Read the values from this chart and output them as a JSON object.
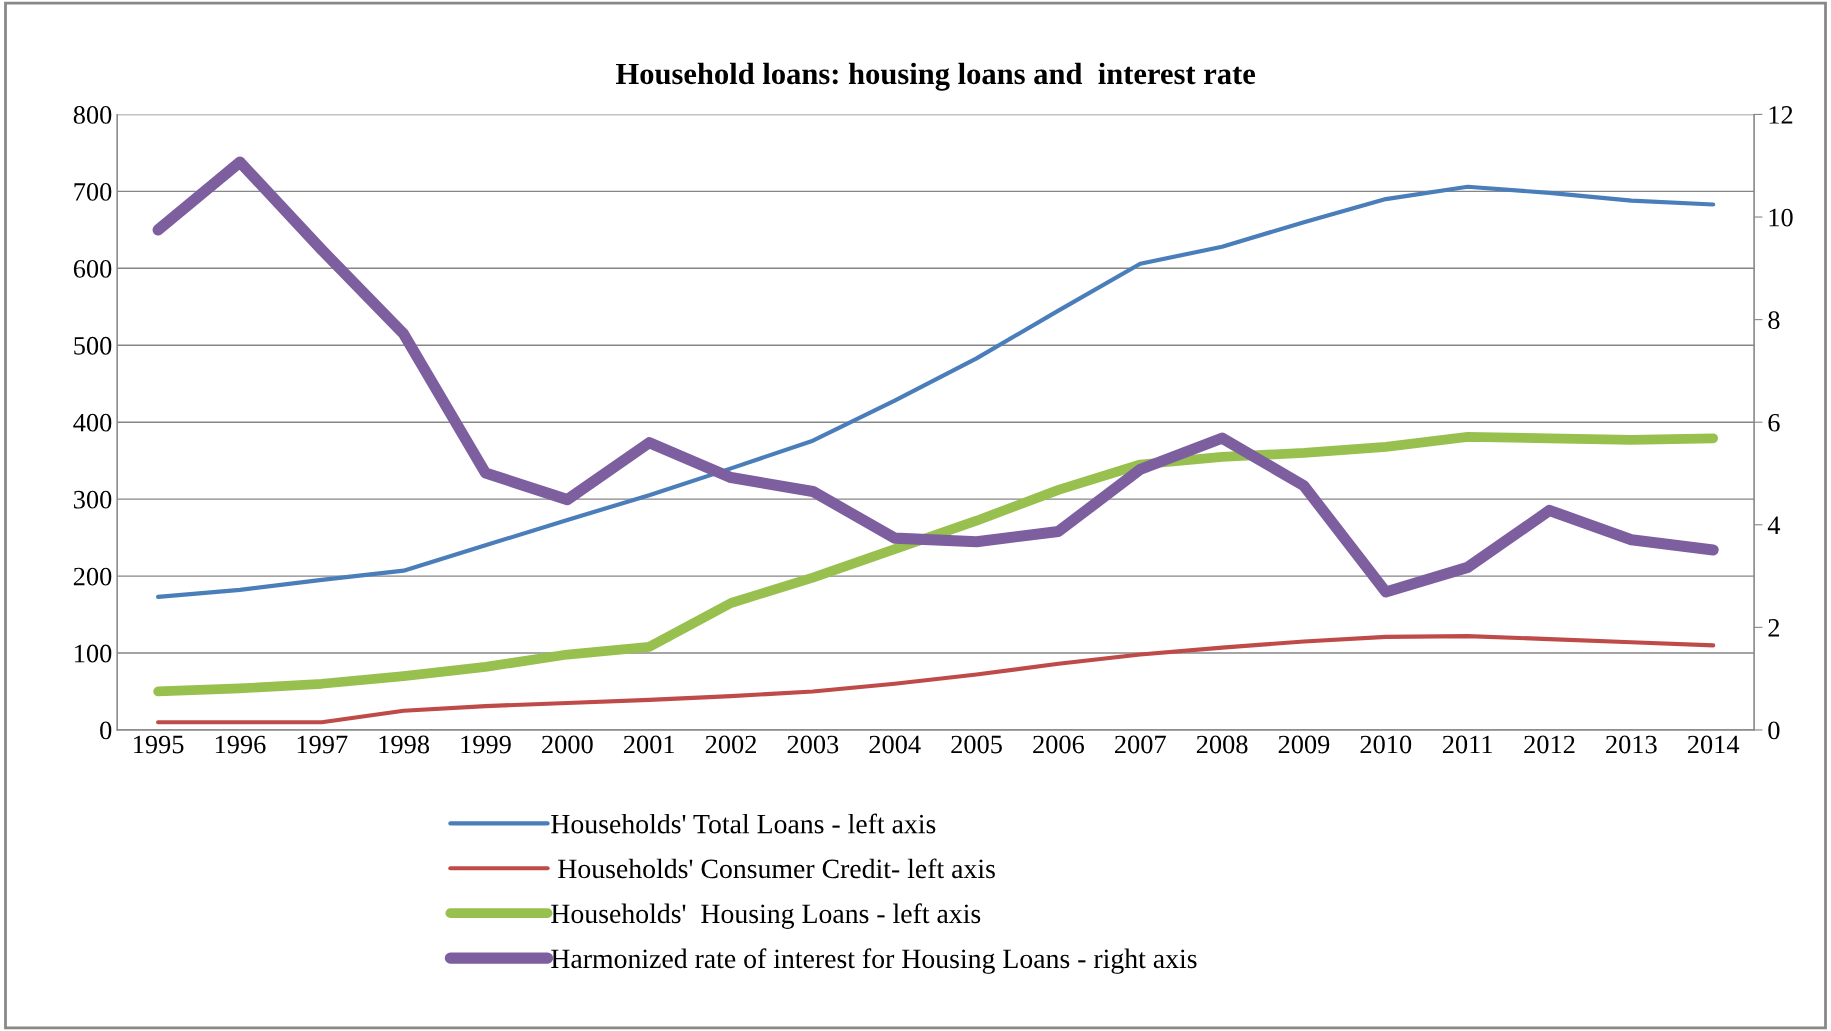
{
  "chart_data": {
    "type": "line",
    "title": "Household loans: housing loans and  interest rate",
    "categories": [
      "1995",
      "1996",
      "1997",
      "1998",
      "1999",
      "2000",
      "2001",
      "2002",
      "2003",
      "2004",
      "2005",
      "2006",
      "2007",
      "2008",
      "2009",
      "2010",
      "2011",
      "2012",
      "2013",
      "2014"
    ],
    "series": [
      {
        "name": "Households' Total Loans - left axis",
        "color": "#4a7ebb",
        "values": [
          173,
          182,
          195,
          207,
          240,
          273,
          305,
          340,
          376,
          428,
          483,
          545,
          606,
          628,
          660,
          690,
          706,
          698,
          688,
          683
        ]
      },
      {
        "name": " Households' Consumer Credit- left axis",
        "color": "#be4b48",
        "values": [
          10,
          10,
          10,
          25,
          31,
          35,
          39,
          44,
          50,
          60,
          72,
          86,
          98,
          107,
          115,
          121,
          122,
          118,
          114,
          110
        ]
      },
      {
        "name": "Households'  Housing Loans - left axis",
        "color": "#98c04f",
        "values": [
          50,
          54,
          60,
          70,
          82,
          98,
          108,
          165,
          198,
          235,
          272,
          312,
          345,
          355,
          360,
          368,
          381,
          379,
          377,
          379
        ]
      },
      {
        "name": "Harmonized rate of interest for Housing Loans - right axis",
        "color": "#7d5fa0",
        "axis": "y2",
        "values": [
          9.75,
          11.07,
          9.36,
          7.72,
          5.01,
          4.49,
          5.6,
          4.92,
          4.65,
          3.74,
          3.67,
          3.87,
          5.08,
          5.69,
          4.76,
          2.69,
          3.17,
          4.28,
          3.71,
          3.51
        ]
      }
    ],
    "ylim": [
      0,
      800
    ],
    "yticks": [
      0,
      100,
      200,
      300,
      400,
      500,
      600,
      700,
      800
    ],
    "y2lim": [
      0,
      12
    ],
    "y2ticks": [
      0,
      2,
      4,
      6,
      8,
      10,
      12
    ],
    "grid": "y",
    "legend": "bottom",
    "marker": "none",
    "line_style": "solid"
  }
}
